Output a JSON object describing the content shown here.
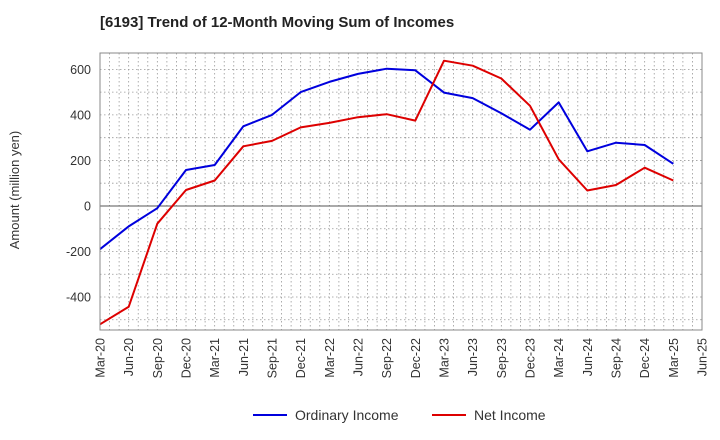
{
  "chart_data": {
    "type": "line",
    "title": "[6193]  Trend of 12-Month Moving Sum of Incomes",
    "xlabel": "",
    "ylabel": "Amount (million yen)",
    "ylim": [
      -545,
      672
    ],
    "yticks": [
      -400,
      -200,
      0,
      200,
      400,
      600
    ],
    "grid": true,
    "legend_position": "bottom-center",
    "x": [
      "Mar-20",
      "Jun-20",
      "Sep-20",
      "Dec-20",
      "Mar-21",
      "Jun-21",
      "Sep-21",
      "Dec-21",
      "Mar-22",
      "Jun-22",
      "Sep-22",
      "Dec-22",
      "Mar-23",
      "Jun-23",
      "Sep-23",
      "Dec-23",
      "Mar-24",
      "Jun-24",
      "Sep-24",
      "Dec-24",
      "Mar-25",
      "Jun-25"
    ],
    "series": [
      {
        "name": "Ordinary Income",
        "color": "#0000dd",
        "values": [
          -190,
          -90,
          -10,
          158,
          180,
          350,
          400,
          500,
          545,
          580,
          603,
          596,
          498,
          474,
          407,
          335,
          455,
          240,
          278,
          268,
          185,
          null
        ]
      },
      {
        "name": "Net Income",
        "color": "#dd0000",
        "values": [
          -520,
          -443,
          -78,
          70,
          112,
          262,
          286,
          345,
          365,
          390,
          403,
          375,
          638,
          616,
          560,
          440,
          205,
          68,
          92,
          168,
          112,
          null
        ]
      }
    ]
  }
}
